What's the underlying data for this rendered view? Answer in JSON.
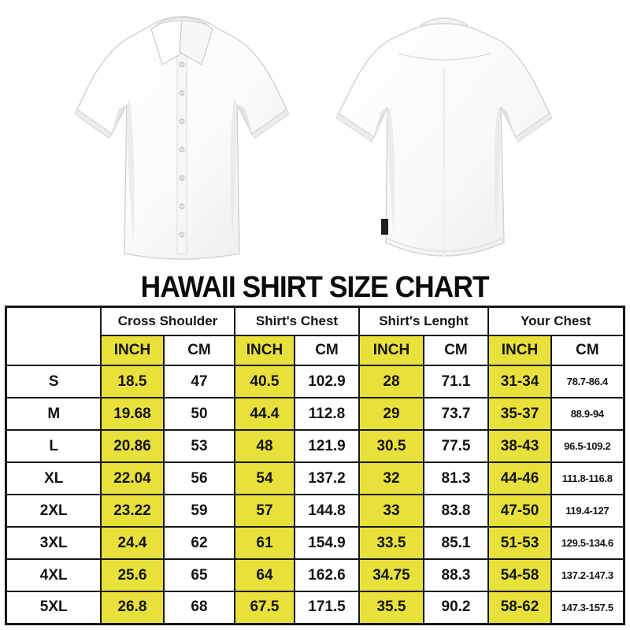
{
  "title": "HAWAII SHIRT SIZE CHART",
  "images": {
    "front_shirt": "white-short-sleeve-shirt-front-view",
    "back_shirt": "white-short-sleeve-shirt-back-view"
  },
  "colors": {
    "highlight_yellow": "#e8e13c",
    "table_border": "#161616",
    "background": "#ffffff",
    "text": "#141414"
  },
  "table": {
    "corner_label": "",
    "groups": [
      {
        "label": "Cross Shoulder"
      },
      {
        "label": "Shirt's Chest"
      },
      {
        "label": "Shirt's Lenght"
      },
      {
        "label": "Your Chest"
      }
    ],
    "unit_headers": [
      "INCH",
      "CM",
      "INCH",
      "CM",
      "INCH",
      "CM",
      "INCH",
      "CM"
    ],
    "rows": [
      {
        "size": "S",
        "values": [
          "18.5",
          "47",
          "40.5",
          "102.9",
          "28",
          "71.1",
          "31-34",
          "78.7-86.4"
        ]
      },
      {
        "size": "M",
        "values": [
          "19.68",
          "50",
          "44.4",
          "112.8",
          "29",
          "73.7",
          "35-37",
          "88.9-94"
        ]
      },
      {
        "size": "L",
        "values": [
          "20.86",
          "53",
          "48",
          "121.9",
          "30.5",
          "77.5",
          "38-43",
          "96.5-109.2"
        ]
      },
      {
        "size": "XL",
        "values": [
          "22.04",
          "56",
          "54",
          "137.2",
          "32",
          "81.3",
          "44-46",
          "111.8-116.8"
        ]
      },
      {
        "size": "2XL",
        "values": [
          "23.22",
          "59",
          "57",
          "144.8",
          "33",
          "83.8",
          "47-50",
          "119.4-127"
        ]
      },
      {
        "size": "3XL",
        "values": [
          "24.4",
          "62",
          "61",
          "154.9",
          "33.5",
          "85.1",
          "51-53",
          "129.5-134.6"
        ]
      },
      {
        "size": "4XL",
        "values": [
          "25.6",
          "65",
          "64",
          "162.6",
          "34.75",
          "88.3",
          "54-58",
          "137.2-147.3"
        ]
      },
      {
        "size": "5XL",
        "values": [
          "26.8",
          "68",
          "67.5",
          "171.5",
          "35.5",
          "90.2",
          "58-62",
          "147.3-157.5"
        ]
      }
    ]
  }
}
